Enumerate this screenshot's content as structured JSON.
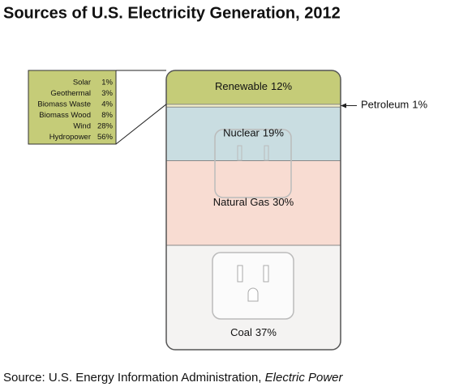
{
  "chart_data": {
    "type": "stacked_bar",
    "title": "Sources of U.S. Electricity Generation, 2012",
    "categories": [
      "Renewable",
      "Petroleum",
      "Nuclear",
      "Natural Gas",
      "Coal"
    ],
    "values": [
      12,
      1,
      19,
      30,
      37
    ],
    "value_labels": [
      "12%",
      "1%",
      "19%",
      "30%",
      "37%"
    ],
    "colors": [
      "#c5cc78",
      "#f3efc8",
      "#c9dde1",
      "#f8dcd2",
      "#f4f3f2"
    ],
    "breakdown": {
      "categories": [
        "Solar",
        "Geothermal",
        "Biomass Waste",
        "Biomass Wood",
        "Wind",
        "Hydropower"
      ],
      "values": [
        1,
        3,
        4,
        8,
        28,
        56
      ],
      "value_labels": [
        "1%",
        "3%",
        "4%",
        "8%",
        "28%",
        "56%"
      ],
      "color": "#c5cc78"
    },
    "source": {
      "text": "Source: U.S. Energy Information Administration,",
      "italic": "Electric Power"
    }
  }
}
